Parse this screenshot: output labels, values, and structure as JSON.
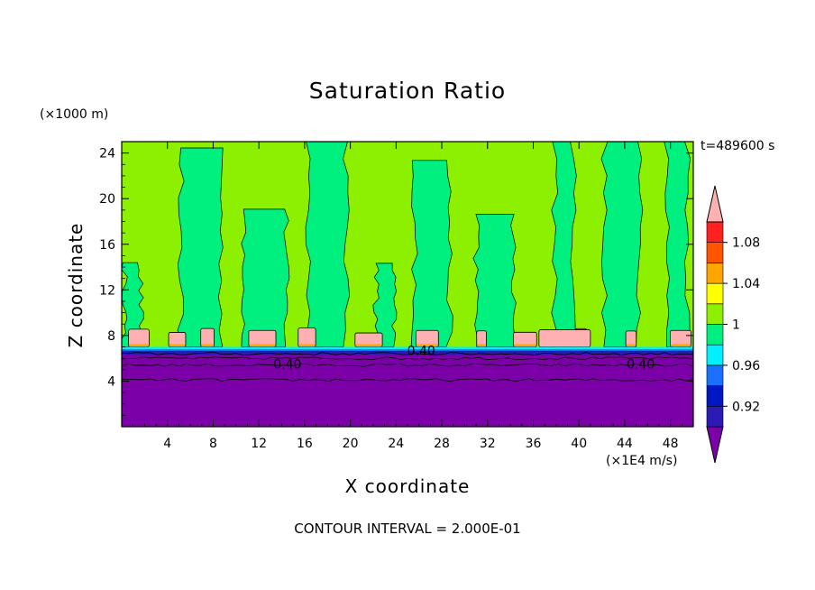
{
  "chart_data": {
    "type": "heatmap",
    "title": "Saturation Ratio",
    "xlabel": "X coordinate",
    "ylabel": "Z coordinate",
    "x_units": "(×1E4 m/s)",
    "y_units": "(×1000 m)",
    "time_label": "t=489600 s",
    "footer": "CONTOUR INTERVAL = 2.000E-01",
    "xlim": [
      0,
      50
    ],
    "ylim": [
      0,
      25
    ],
    "x_ticks": [
      "4",
      "8",
      "12",
      "16",
      "20",
      "24",
      "28",
      "32",
      "36",
      "40",
      "44",
      "48"
    ],
    "y_ticks": [
      "4",
      "8",
      "12",
      "16",
      "20",
      "24"
    ],
    "contour_labels": [
      {
        "text": "0.40",
        "x": 14.5,
        "y": 5.5
      },
      {
        "text": "0.40",
        "x": 45.4,
        "y": 5.5
      },
      {
        "text": "0.40",
        "x": 26.2,
        "y": 6.7
      }
    ],
    "colorbar": {
      "labels": [
        "0.92",
        "0.96",
        "1",
        "1.04",
        "1.08"
      ],
      "colors": {
        "lt_092": "#7b00a8",
        "092_094": "#2c1ab5",
        "094_096": "#0018c4",
        "096_098": "#1a70ff",
        "098_100": "#00f0ff",
        "100_102": "#00f080",
        "102_104": "#8cf000",
        "104_106": "#ffff00",
        "106_108": "#ffa500",
        "108_110": "#ff5500",
        "110_112": "#ff2020",
        "gt_112": "#ffb0b0"
      }
    },
    "field_levels": {
      "lower_layer": {
        "z_top": 6.8,
        "value": "< 0.92"
      },
      "cloud_tops_z": 8.0,
      "upper_mix": [
        "1",
        "1.02"
      ]
    }
  }
}
